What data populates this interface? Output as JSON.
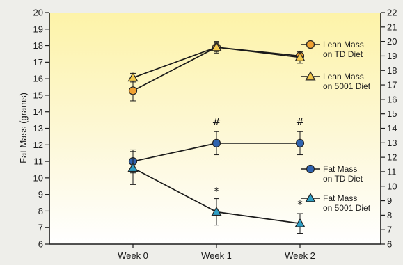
{
  "chart_data": {
    "type": "line",
    "categories": [
      "Week 0",
      "Week 1",
      "Week 2"
    ],
    "ylabel": "Fat Mass (grams)",
    "ylim_left": [
      6,
      20
    ],
    "ylim_right": [
      6,
      22
    ],
    "left_ticks": [
      6,
      7,
      8,
      9,
      10,
      11,
      12,
      13,
      14,
      15,
      16,
      17,
      18,
      19,
      20
    ],
    "right_ticks": [
      6,
      7,
      8,
      9,
      10,
      11,
      12,
      13,
      14,
      15,
      16,
      17,
      18,
      19,
      20,
      21,
      22
    ],
    "grid": false,
    "legend_position": "right",
    "series": [
      {
        "name": "Lean Mass on TD Diet",
        "name_lines": [
          "Lean Mass",
          "on TD Diet"
        ],
        "axis": "right",
        "marker": "circle",
        "color": "#f0a132",
        "values": [
          16.6,
          19.6,
          19.0
        ],
        "errors": [
          0.7,
          0.3,
          0.3
        ]
      },
      {
        "name": "Lean Mass on 5001 Diet",
        "name_lines": [
          "Lean Mass",
          "on 5001 Diet"
        ],
        "axis": "right",
        "marker": "triangle",
        "color": "#f3c84a",
        "values": [
          17.5,
          19.6,
          18.9
        ],
        "errors": [
          0.3,
          0.4,
          0.4
        ]
      },
      {
        "name": "Fat Mass on TD Diet",
        "name_lines": [
          "Fat Mass",
          "on TD Diet"
        ],
        "axis": "left",
        "marker": "circle",
        "color": "#2f63b0",
        "values": [
          11.0,
          12.1,
          12.1
        ],
        "errors": [
          0.7,
          0.7,
          0.7
        ]
      },
      {
        "name": "Fat Mass on 5001 Diet",
        "name_lines": [
          "Fat Mass",
          "on 5001 Diet"
        ],
        "axis": "left",
        "marker": "triangle",
        "color": "#2f9ec4",
        "values": [
          10.6,
          7.95,
          7.25
        ],
        "errors": [
          1.0,
          0.8,
          0.6
        ]
      }
    ],
    "annotations": [
      {
        "text": "#",
        "category": "Week 1",
        "axis": "left",
        "y": 13.4
      },
      {
        "text": "#",
        "category": "Week 2",
        "axis": "left",
        "y": 13.4
      },
      {
        "text": "*",
        "category": "Week 1",
        "axis": "left",
        "y": 9.2
      },
      {
        "text": "*",
        "category": "Week 2",
        "axis": "left",
        "y": 8.4
      }
    ]
  }
}
